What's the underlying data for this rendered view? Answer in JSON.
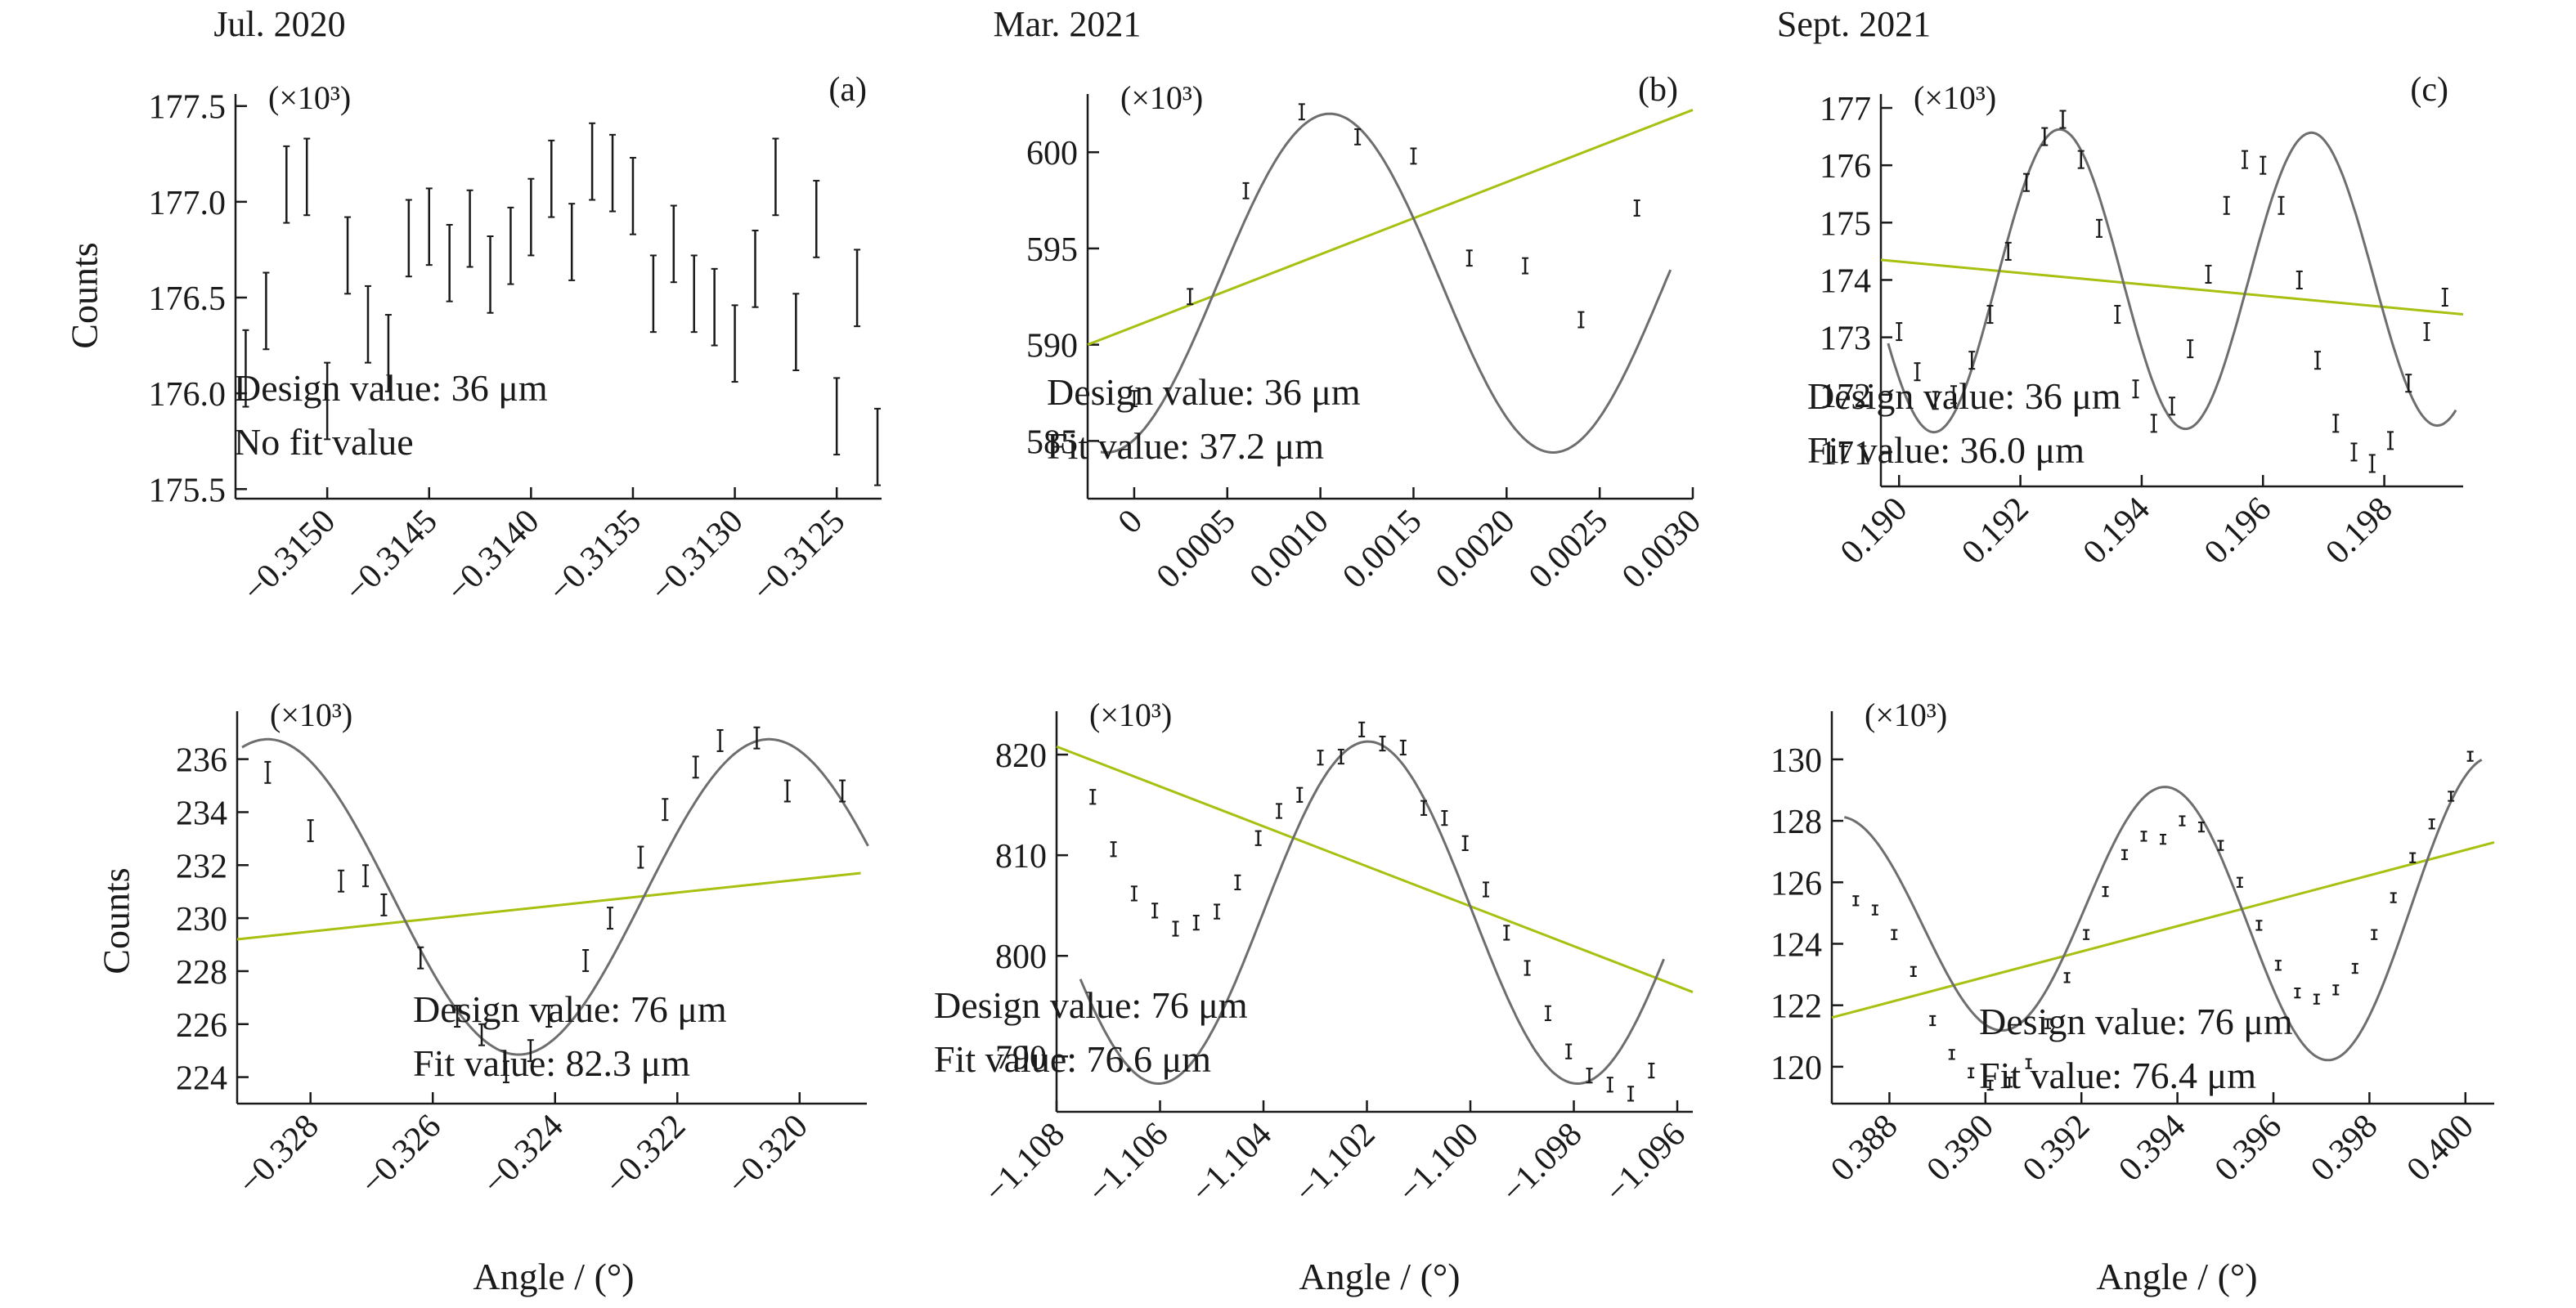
{
  "column_titles": [
    "Jul. 2020",
    "Mar. 2021",
    "Sept. 2021"
  ],
  "y_label": "Counts",
  "x_label": "Angle / (°)",
  "colors": {
    "data": "#1a1a1a",
    "fit_curve": "#6e6e6e",
    "linear_fit": "#a8c010"
  },
  "chart_data": [
    {
      "type": "scatter",
      "panel_label": "(a)",
      "multiplier_label": "(×10³)",
      "xlim": [
        -0.31545,
        -0.31228
      ],
      "ylim": [
        175.45,
        177.52
      ],
      "x_ticks": [
        -0.315,
        -0.3145,
        -0.314,
        -0.3135,
        -0.313,
        -0.3125
      ],
      "x_tick_labels": [
        "−0.3150",
        "−0.3145",
        "−0.3140",
        "−0.3135",
        "−0.3130",
        "−0.3125"
      ],
      "y_ticks": [
        175.5,
        176.0,
        176.5,
        177.0,
        177.5
      ],
      "y_tick_labels": [
        "175.5",
        "176.0",
        "176.5",
        "177.0",
        "177.5"
      ],
      "design_value": "Design value: 36 μm",
      "fit_value": "No fit value",
      "x": [
        -0.3154,
        -0.3153,
        -0.3152,
        -0.3151,
        -0.315,
        -0.3149,
        -0.3148,
        -0.3147,
        -0.3146,
        -0.3145,
        -0.3144,
        -0.3143,
        -0.3142,
        -0.3141,
        -0.314,
        -0.3139,
        -0.3138,
        -0.3137,
        -0.3136,
        -0.3135,
        -0.3134,
        -0.3133,
        -0.3132,
        -0.3131,
        -0.313,
        -0.3129,
        -0.3128,
        -0.3127,
        -0.3126,
        -0.3125,
        -0.3124,
        -0.3123
      ],
      "y": [
        176.13,
        176.43,
        177.09,
        177.13,
        175.96,
        176.72,
        176.36,
        176.21,
        176.81,
        176.87,
        176.68,
        176.86,
        176.62,
        176.77,
        176.92,
        177.12,
        176.79,
        177.21,
        177.15,
        177.03,
        176.52,
        176.78,
        176.52,
        176.45,
        176.26,
        176.65,
        177.13,
        176.32,
        176.91,
        175.88,
        176.55,
        175.72
      ],
      "err": 0.2
    },
    {
      "type": "scatter",
      "panel_label": "(b)",
      "multiplier_label": "(×10³)",
      "xlim": [
        -0.00025,
        0.003
      ],
      "ylim": [
        582.0,
        602.6
      ],
      "x_ticks": [
        0,
        0.0005,
        0.001,
        0.0015,
        0.002,
        0.0025,
        0.003
      ],
      "x_tick_labels": [
        "0",
        "0.0005",
        "0.0010",
        "0.0015",
        "0.0020",
        "0.0025",
        "0.0030"
      ],
      "y_ticks": [
        585,
        590,
        595,
        600
      ],
      "y_tick_labels": [
        "585",
        "590",
        "595",
        "600"
      ],
      "design_value": "Design value: 36 μm",
      "fit_value": "Fit value: 37.2 μm",
      "x": [
        0.0,
        0.0003,
        0.0006,
        0.0009,
        0.0012,
        0.0015,
        0.0018,
        0.0021,
        0.0024,
        0.0027
      ],
      "y": [
        587.2,
        592.5,
        598.0,
        602.1,
        600.8,
        599.8,
        594.5,
        594.1,
        591.3,
        597.1
      ],
      "err": 0.4,
      "fit_curve": {
        "center": 593.2,
        "amplitude": 8.8,
        "period": 0.0024,
        "x_peak": 0.00105
      },
      "linear_fit": {
        "x": [
          -0.00025,
          0.003
        ],
        "y": [
          590.0,
          602.2
        ]
      }
    },
    {
      "type": "scatter",
      "panel_label": "(c)",
      "multiplier_label": "(×10³)",
      "xlim": [
        0.1897,
        0.1993
      ],
      "ylim": [
        170.4,
        177.1
      ],
      "x_ticks": [
        0.19,
        0.192,
        0.194,
        0.196,
        0.198
      ],
      "x_tick_labels": [
        "0.190",
        "0.192",
        "0.194",
        "0.196",
        "0.198"
      ],
      "y_ticks": [
        171,
        172,
        173,
        174,
        175,
        176,
        177
      ],
      "y_tick_labels": [
        "171",
        "172",
        "173",
        "174",
        "175",
        "176",
        "177"
      ],
      "design_value": "Design value: 36 μm",
      "fit_value": "Fit value: 36.0 μm",
      "x": [
        0.19,
        0.1903,
        0.1906,
        0.1909,
        0.1912,
        0.1915,
        0.1918,
        0.1921,
        0.1924,
        0.1927,
        0.193,
        0.1933,
        0.1936,
        0.1939,
        0.1942,
        0.1945,
        0.1948,
        0.1951,
        0.1954,
        0.1957,
        0.196,
        0.1963,
        0.1966,
        0.1969,
        0.1972,
        0.1975,
        0.1978,
        0.1981,
        0.1984,
        0.1987,
        0.199
      ],
      "y": [
        173.1,
        172.4,
        171.9,
        172.0,
        172.6,
        173.4,
        174.5,
        175.7,
        176.5,
        176.8,
        176.1,
        174.9,
        173.4,
        172.1,
        171.5,
        171.8,
        172.8,
        174.1,
        175.3,
        176.1,
        176.0,
        175.3,
        174.0,
        172.6,
        171.5,
        171.0,
        170.8,
        171.2,
        172.2,
        173.1,
        173.7
      ],
      "err": 0.15,
      "fit_curve": {
        "center": 174.0,
        "amplitude": 2.6,
        "period": 0.00415,
        "x_peak": 0.19265,
        "amp_growth": -0.05
      },
      "linear_fit": {
        "x": [
          0.1897,
          0.1993
        ],
        "y": [
          174.35,
          173.4
        ]
      }
    },
    {
      "type": "scatter",
      "panel_label": "",
      "multiplier_label": "(×10³)",
      "xlim": [
        -0.3292,
        -0.3189
      ],
      "ylim": [
        223.0,
        237.5
      ],
      "x_ticks": [
        -0.328,
        -0.326,
        -0.324,
        -0.322,
        -0.32
      ],
      "x_tick_labels": [
        "−0.328",
        "−0.326",
        "−0.324",
        "−0.322",
        "−0.320"
      ],
      "y_ticks": [
        224,
        226,
        228,
        230,
        232,
        234,
        236
      ],
      "y_tick_labels": [
        "224",
        "226",
        "228",
        "230",
        "232",
        "234",
        "236"
      ],
      "design_value": "Design value: 76 μm",
      "fit_value": "Fit value: 82.3 μm",
      "x": [
        -0.3287,
        -0.328,
        -0.3275,
        -0.3271,
        -0.3268,
        -0.3262,
        -0.3256,
        -0.3252,
        -0.3248,
        -0.3244,
        -0.3241,
        -0.3235,
        -0.3231,
        -0.3226,
        -0.3222,
        -0.3217,
        -0.3213,
        -0.3207,
        -0.3202,
        -0.3193
      ],
      "y": [
        235.5,
        233.3,
        231.4,
        231.6,
        230.5,
        228.5,
        226.3,
        225.6,
        224.2,
        225.0,
        226.3,
        228.4,
        230.0,
        232.3,
        234.1,
        235.7,
        236.7,
        236.8,
        234.8,
        234.8
      ],
      "err": 0.4,
      "fit_curve": {
        "center": 230.8,
        "amplitude": 5.95,
        "period": 0.0082,
        "x_peak": -0.3205
      },
      "linear_fit": {
        "x": [
          -0.3292,
          -0.319
        ],
        "y": [
          229.2,
          231.7
        ]
      }
    },
    {
      "type": "scatter",
      "panel_label": "",
      "multiplier_label": "(×10³)",
      "xlim": [
        -1.108,
        -1.0957
      ],
      "ylim": [
        784.5,
        823.5
      ],
      "x_ticks": [
        -1.108,
        -1.106,
        -1.104,
        -1.102,
        -1.1,
        -1.098,
        -1.096
      ],
      "x_tick_labels": [
        "−1.108",
        "−1.106",
        "−1.104",
        "−1.102",
        "−1.100",
        "−1.098",
        "−1.096"
      ],
      "y_ticks": [
        790,
        800,
        810,
        820
      ],
      "y_tick_labels": [
        "790",
        "800",
        "810",
        "820"
      ],
      "design_value": "Design value: 76 μm",
      "fit_value": "Fit value: 76.6 μm",
      "x": [
        -1.1073,
        -1.1069,
        -1.1065,
        -1.1061,
        -1.1057,
        -1.1053,
        -1.1049,
        -1.1045,
        -1.1041,
        -1.1037,
        -1.1033,
        -1.1029,
        -1.1025,
        -1.1021,
        -1.1017,
        -1.1013,
        -1.1009,
        -1.1005,
        -1.1001,
        -1.0997,
        -1.0993,
        -1.0989,
        -1.0985,
        -1.0981,
        -1.0977,
        -1.0973,
        -1.0969,
        -1.0965
      ],
      "y": [
        815.8,
        810.6,
        806.2,
        804.5,
        802.7,
        803.3,
        804.4,
        807.3,
        811.7,
        814.4,
        816.0,
        819.7,
        819.8,
        822.5,
        821.1,
        820.7,
        814.7,
        813.7,
        811.2,
        806.6,
        802.3,
        798.8,
        794.3,
        790.5,
        788.1,
        787.2,
        786.3,
        788.6
      ],
      "err": 0.7,
      "fit_curve": {
        "center": 804.3,
        "amplitude": 17.0,
        "period": 0.0081,
        "x_peak": -1.10198
      },
      "linear_fit": {
        "x": [
          -1.108,
          -1.0957
        ],
        "y": [
          820.8,
          796.4
        ]
      }
    },
    {
      "type": "scatter",
      "panel_label": "",
      "multiplier_label": "(×10³)",
      "xlim": [
        0.3868,
        0.4006
      ],
      "ylim": [
        118.8,
        131.3
      ],
      "x_ticks": [
        0.388,
        0.39,
        0.392,
        0.394,
        0.396,
        0.398,
        0.4
      ],
      "x_tick_labels": [
        "0.388",
        "0.390",
        "0.392",
        "0.394",
        "0.396",
        "0.398",
        "0.400"
      ],
      "y_ticks": [
        120,
        122,
        124,
        126,
        128,
        130
      ],
      "y_tick_labels": [
        "120",
        "122",
        "124",
        "126",
        "128",
        "130"
      ],
      "design_value": "Design value: 76 μm",
      "fit_value": "Fit value: 76.4 μm",
      "x": [
        0.3873,
        0.3877,
        0.3881,
        0.3885,
        0.3889,
        0.3893,
        0.3897,
        0.3901,
        0.3905,
        0.3909,
        0.3913,
        0.3917,
        0.3921,
        0.3925,
        0.3929,
        0.3933,
        0.3937,
        0.3941,
        0.3945,
        0.3949,
        0.3953,
        0.3957,
        0.3961,
        0.3965,
        0.3969,
        0.3973,
        0.3977,
        0.3981,
        0.3985,
        0.3989,
        0.3993,
        0.3997,
        0.4001
      ],
      "y": [
        125.4,
        125.1,
        124.3,
        123.1,
        121.5,
        120.4,
        119.8,
        119.4,
        119.5,
        120.1,
        121.4,
        122.9,
        124.3,
        125.7,
        126.9,
        127.5,
        127.4,
        128.0,
        127.8,
        127.2,
        126.0,
        124.6,
        123.3,
        122.4,
        122.2,
        122.5,
        123.2,
        124.3,
        125.5,
        126.8,
        127.9,
        128.8,
        130.1
      ],
      "err": 0.15,
      "fit_curve": {
        "center": 124.9,
        "amplitude": 4.2,
        "period": 0.0068,
        "x_peak": 0.3937,
        "amp_growth": 0.45
      },
      "linear_fit": {
        "x": [
          0.3868,
          0.4006
        ],
        "y": [
          121.6,
          127.3
        ]
      }
    }
  ]
}
